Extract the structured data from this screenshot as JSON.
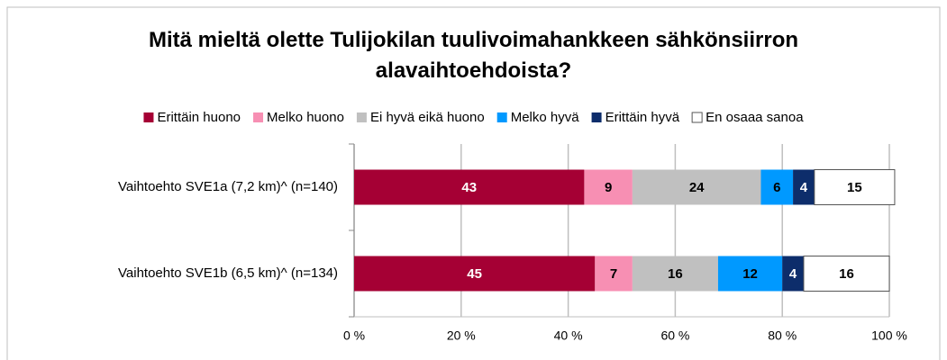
{
  "chart_data": {
    "type": "stacked_bar_horizontal",
    "title": "Mitä mieltä olette Tulijokilan tuulivoimahankkeen sähkönsiirron alavaihtoehdoista?",
    "categories": [
      "Vaihtoehto SVE1a (7,2 km)^ (n=140)",
      "Vaihtoehto SVE1b (6,5 km)^ (n=134)"
    ],
    "series": [
      {
        "name": "Erittäin huono",
        "color": "#a50034",
        "values": [
          43,
          45
        ]
      },
      {
        "name": "Melko huono",
        "color": "#f78fb3",
        "values": [
          9,
          7
        ]
      },
      {
        "name": "Ei hyvä eikä huono",
        "color": "#c0c0c0",
        "values": [
          24,
          16
        ]
      },
      {
        "name": "Melko hyvä",
        "color": "#0099ff",
        "values": [
          6,
          12
        ]
      },
      {
        "name": "Erittäin hyvä",
        "color": "#0d2d6b",
        "values": [
          4,
          4
        ]
      },
      {
        "name": "En osaaa sanoa",
        "color": "#ffffff",
        "values": [
          15,
          16
        ]
      }
    ],
    "xlim": [
      0,
      100
    ],
    "xticks": [
      {
        "value": 0,
        "label": "0 %"
      },
      {
        "value": 20,
        "label": "20 %"
      },
      {
        "value": 40,
        "label": "40 %"
      },
      {
        "value": 60,
        "label": "60 %"
      },
      {
        "value": 80,
        "label": "80 %"
      },
      {
        "value": 100,
        "label": "100 %"
      }
    ],
    "grid": true,
    "legend": "top"
  }
}
